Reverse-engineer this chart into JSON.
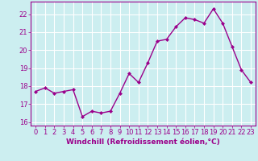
{
  "x": [
    0,
    1,
    2,
    3,
    4,
    5,
    6,
    7,
    8,
    9,
    10,
    11,
    12,
    13,
    14,
    15,
    16,
    17,
    18,
    19,
    20,
    21,
    22,
    23
  ],
  "y": [
    17.7,
    17.9,
    17.6,
    17.7,
    17.8,
    16.3,
    16.6,
    16.5,
    16.6,
    17.6,
    18.7,
    18.2,
    19.3,
    20.5,
    20.6,
    21.3,
    21.8,
    21.7,
    21.5,
    22.3,
    21.5,
    20.2,
    18.9,
    18.2
  ],
  "line_color": "#9b008b",
  "marker": "D",
  "marker_size": 2.0,
  "linewidth": 1.0,
  "xlabel": "Windchill (Refroidissement éolien,°C)",
  "xlabel_fontsize": 6.5,
  "xlim": [
    -0.5,
    23.5
  ],
  "ylim": [
    15.8,
    22.7
  ],
  "yticks": [
    16,
    17,
    18,
    19,
    20,
    21,
    22
  ],
  "xticks": [
    0,
    1,
    2,
    3,
    4,
    5,
    6,
    7,
    8,
    9,
    10,
    11,
    12,
    13,
    14,
    15,
    16,
    17,
    18,
    19,
    20,
    21,
    22,
    23
  ],
  "tick_fontsize": 6.0,
  "background_color": "#cceef0",
  "grid_color": "#ffffff",
  "grid_linewidth": 0.8,
  "tick_color": "#9b008b",
  "label_color": "#9b008b",
  "spine_color": "#9b008b"
}
